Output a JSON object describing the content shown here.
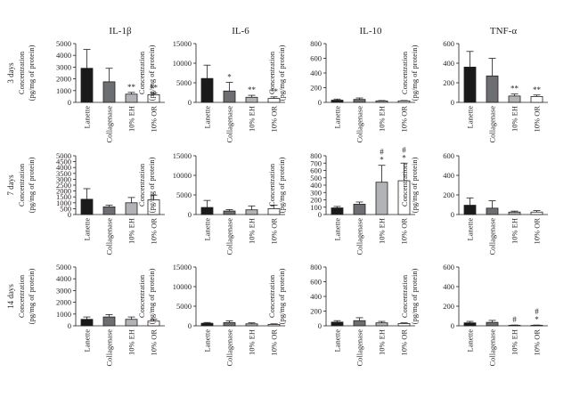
{
  "colors": {
    "Lanette": "#1a1a1a",
    "Collagenase": "#6d6e71",
    "10% EH": "#b1b3b6",
    "10% OR": "#ffffff"
  },
  "chart_data": {
    "type": "bar",
    "columns": [
      "IL-1β",
      "IL-6",
      "IL-10",
      "TNF-α"
    ],
    "rows": [
      "3 days",
      "7 days",
      "14 days"
    ],
    "categories": [
      "Lanette",
      "Collagenase",
      "10% EH",
      "10% OR"
    ],
    "ylabel_lines": [
      "Concentration",
      "(pg/mg of protein)"
    ],
    "charts": [
      {
        "row": "3 days",
        "column": "IL-1β",
        "ylim": [
          0,
          5000
        ],
        "yticks": [
          0,
          1000,
          2000,
          3000,
          4000,
          5000
        ],
        "values": [
          2900,
          1750,
          700,
          650
        ],
        "errors": [
          1600,
          1150,
          150,
          150
        ],
        "annotations": [
          "",
          "",
          "**",
          "**"
        ]
      },
      {
        "row": "3 days",
        "column": "IL-6",
        "ylim": [
          0,
          15000
        ],
        "yticks": [
          0,
          5000,
          10000,
          15000
        ],
        "values": [
          6100,
          2900,
          1300,
          1000
        ],
        "errors": [
          3400,
          2200,
          500,
          400
        ],
        "annotations": [
          "",
          "*",
          "**",
          "**"
        ]
      },
      {
        "row": "3 days",
        "column": "IL-10",
        "ylim": [
          0,
          800
        ],
        "yticks": [
          0,
          200,
          400,
          600,
          800
        ],
        "values": [
          30,
          40,
          20,
          20
        ],
        "errors": [
          15,
          20,
          5,
          5
        ],
        "annotations": [
          "",
          "",
          "",
          ""
        ]
      },
      {
        "row": "3 days",
        "column": "TNF-α",
        "ylim": [
          0,
          600
        ],
        "yticks": [
          0,
          200,
          400,
          600
        ],
        "values": [
          360,
          270,
          65,
          60
        ],
        "errors": [
          160,
          180,
          20,
          15
        ],
        "annotations": [
          "",
          "",
          "**",
          "**"
        ]
      },
      {
        "row": "7 days",
        "column": "IL-1β",
        "ylim": [
          0,
          5000
        ],
        "yticks": [
          0,
          500,
          1000,
          1500,
          2000,
          2500,
          3000,
          3500,
          4000,
          4500,
          5000
        ],
        "values": [
          1300,
          650,
          1000,
          1250
        ],
        "errors": [
          900,
          150,
          450,
          400
        ],
        "annotations": [
          "",
          "",
          "",
          ""
        ]
      },
      {
        "row": "7 days",
        "column": "IL-6",
        "ylim": [
          0,
          15000
        ],
        "yticks": [
          0,
          5000,
          10000,
          15000
        ],
        "values": [
          1800,
          900,
          1200,
          1500
        ],
        "errors": [
          1800,
          350,
          1000,
          900
        ],
        "annotations": [
          "",
          "",
          "",
          ""
        ]
      },
      {
        "row": "7 days",
        "column": "IL-10",
        "ylim": [
          0,
          800
        ],
        "yticks": [
          0,
          100,
          200,
          300,
          400,
          500,
          600,
          700,
          800
        ],
        "values": [
          90,
          140,
          440,
          460
        ],
        "errors": [
          20,
          30,
          230,
          240
        ],
        "annotations": [
          "",
          "",
          "#\n*",
          "#\n*"
        ]
      },
      {
        "row": "7 days",
        "column": "TNF-α",
        "ylim": [
          0,
          600
        ],
        "yticks": [
          0,
          200,
          400,
          600
        ],
        "values": [
          95,
          65,
          25,
          25
        ],
        "errors": [
          75,
          75,
          10,
          15
        ],
        "annotations": [
          "",
          "",
          "",
          ""
        ]
      },
      {
        "row": "14 days",
        "column": "IL-1β",
        "ylim": [
          0,
          5000
        ],
        "yticks": [
          0,
          1000,
          2000,
          3000,
          4000,
          5000
        ],
        "values": [
          550,
          750,
          550,
          400
        ],
        "errors": [
          200,
          200,
          200,
          150
        ],
        "annotations": [
          "",
          "",
          "",
          ""
        ]
      },
      {
        "row": "14 days",
        "column": "IL-6",
        "ylim": [
          0,
          15000
        ],
        "yticks": [
          0,
          5000,
          10000,
          15000
        ],
        "values": [
          650,
          800,
          500,
          350
        ],
        "errors": [
          200,
          450,
          250,
          150
        ],
        "annotations": [
          "",
          "",
          "",
          ""
        ]
      },
      {
        "row": "14 days",
        "column": "IL-10",
        "ylim": [
          0,
          800
        ],
        "yticks": [
          0,
          200,
          400,
          600,
          800
        ],
        "values": [
          50,
          70,
          40,
          30
        ],
        "errors": [
          20,
          40,
          20,
          10
        ],
        "annotations": [
          "",
          "",
          "",
          ""
        ]
      },
      {
        "row": "14 days",
        "column": "TNF-α",
        "ylim": [
          0,
          600
        ],
        "yticks": [
          0,
          200,
          400,
          600
        ],
        "values": [
          30,
          35,
          5,
          5
        ],
        "errors": [
          15,
          20,
          3,
          3
        ],
        "annotations": [
          "",
          "",
          "#",
          "#\n*"
        ]
      }
    ]
  }
}
